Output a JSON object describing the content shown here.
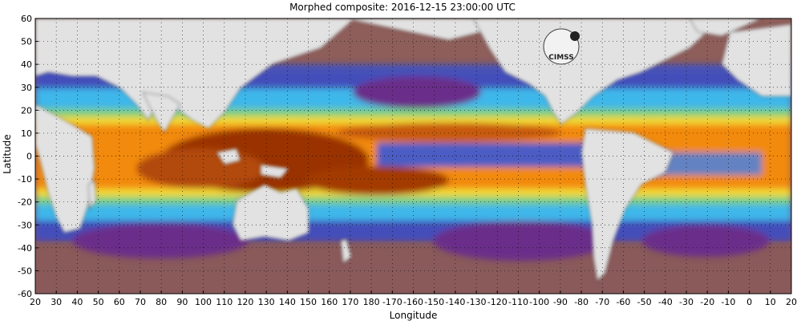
{
  "title": "Morphed composite: 2016-12-15 23:00:00 UTC",
  "axes": {
    "xlabel": "Longitude",
    "ylabel": "Latitude",
    "xticks": [
      "20",
      "30",
      "40",
      "50",
      "60",
      "70",
      "80",
      "90",
      "100",
      "110",
      "120",
      "130",
      "140",
      "150",
      "160",
      "170",
      "180",
      "-170",
      "-160",
      "-150",
      "-140",
      "-130",
      "-120",
      "-110",
      "-100",
      "-90",
      "-80",
      "-70",
      "-60",
      "-50",
      "-40",
      "-30",
      "-20",
      "-10",
      "0",
      "10",
      "20"
    ],
    "yticks": [
      "60",
      "50",
      "40",
      "30",
      "20",
      "10",
      "0",
      "-10",
      "-20",
      "-30",
      "-40",
      "-50",
      "-60"
    ]
  },
  "logo": {
    "text": "CIMSS"
  },
  "colors": {
    "land": "#e2e2e2",
    "ocean_dry": "#8a5a52",
    "dry_purple": "#7a3a8c",
    "moist_blue": "#2f6de0",
    "cyan": "#3fc3f0",
    "green": "#5fd08a",
    "yellow": "#f2e030",
    "orange": "#f28a10",
    "wet_brown": "#9a3200",
    "grid": "#000000"
  }
}
